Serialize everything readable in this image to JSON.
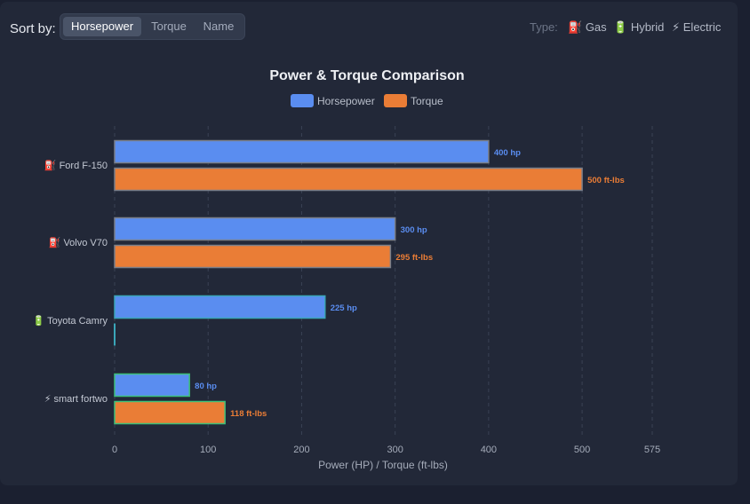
{
  "toolbar": {
    "sort_label": "Sort by:",
    "sort_options": [
      "Horsepower",
      "Torque",
      "Name"
    ],
    "active_sort": "Horsepower",
    "type_label": "Type:",
    "types": [
      {
        "icon": "fuel-pump-icon",
        "glyph": "⛽",
        "label": "Gas",
        "color": "#e05a4f"
      },
      {
        "icon": "battery-icon",
        "glyph": "🔋",
        "label": "Hybrid",
        "color": "#5cc15c"
      },
      {
        "icon": "lightning-icon",
        "glyph": "⚡",
        "label": "Electric",
        "color": "#f5c542"
      }
    ]
  },
  "chart_data": {
    "type": "bar",
    "orientation": "horizontal",
    "title": "Power & Torque Comparison",
    "xlabel": "Power (HP) / Torque (ft-lbs)",
    "xlim": [
      0,
      575
    ],
    "xticks": [
      0,
      100,
      200,
      300,
      400,
      500,
      575
    ],
    "legend": [
      "Horsepower",
      "Torque"
    ],
    "legend_position": "top",
    "categories": [
      {
        "name": "Ford F-150",
        "type": "Gas",
        "glyph": "⛽"
      },
      {
        "name": "Volvo V70",
        "type": "Gas",
        "glyph": "⛽"
      },
      {
        "name": "Toyota Camry",
        "type": "Hybrid",
        "glyph": "🔋"
      },
      {
        "name": "smart fortwo",
        "type": "Electric",
        "glyph": "⚡"
      }
    ],
    "series": [
      {
        "name": "Horsepower",
        "unit": "hp",
        "color": "#5a8df0",
        "values": [
          400,
          300,
          225,
          80
        ]
      },
      {
        "name": "Torque",
        "unit": "ft-lbs",
        "color": "#ea7d36",
        "values": [
          500,
          295,
          0,
          118
        ]
      }
    ],
    "bar_outline_colors": [
      "#7a7f8a",
      "#7a7f8a",
      "#3aa6b9",
      "#3cc07a"
    ]
  }
}
